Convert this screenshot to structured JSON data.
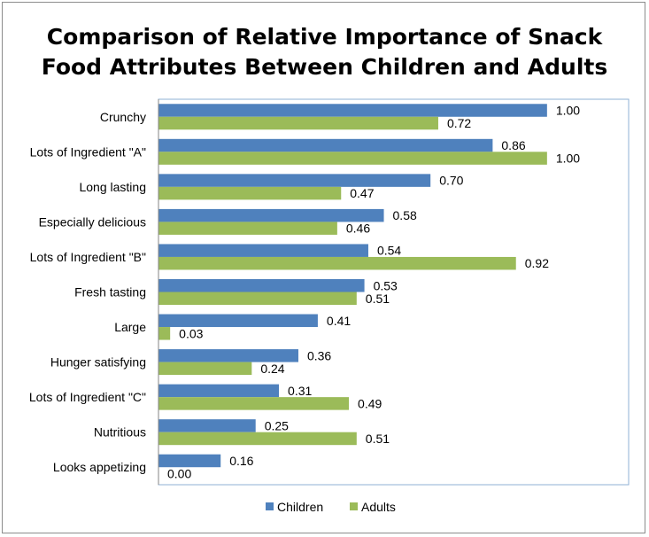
{
  "chart_data": {
    "type": "bar",
    "orientation": "horizontal",
    "title_lines": [
      "Comparison of Relative Importance of Snack",
      "Food Attributes Between Children and Adults"
    ],
    "categories": [
      "Crunchy",
      "Lots of Ingredient \"A\"",
      "Long lasting",
      "Especially delicious",
      "Lots of Ingredient \"B\"",
      "Fresh tasting",
      "Large",
      "Hunger satisfying",
      "Lots of Ingredient \"C\"",
      "Nutritious",
      "Looks appetizing"
    ],
    "series": [
      {
        "name": "Children",
        "color": "#4f81bd",
        "values": [
          1.0,
          0.86,
          0.7,
          0.58,
          0.54,
          0.53,
          0.41,
          0.36,
          0.31,
          0.25,
          0.16
        ],
        "labels": [
          "1.00",
          "0.86",
          "0.70",
          "0.58",
          "0.54",
          "0.53",
          "0.41",
          "0.36",
          "0.31",
          "0.25",
          "0.16"
        ]
      },
      {
        "name": "Adults",
        "color": "#9bbb59",
        "values": [
          0.72,
          1.0,
          0.47,
          0.46,
          0.92,
          0.51,
          0.03,
          0.24,
          0.49,
          0.51,
          0.0
        ],
        "labels": [
          "0.72",
          "1.00",
          "0.47",
          "0.46",
          "0.92",
          "0.51",
          "0.03",
          "0.24",
          "0.49",
          "0.51",
          "0.00"
        ]
      }
    ],
    "xlim": [
      0,
      1.21
    ],
    "grid": false,
    "legend_position": "bottom"
  }
}
